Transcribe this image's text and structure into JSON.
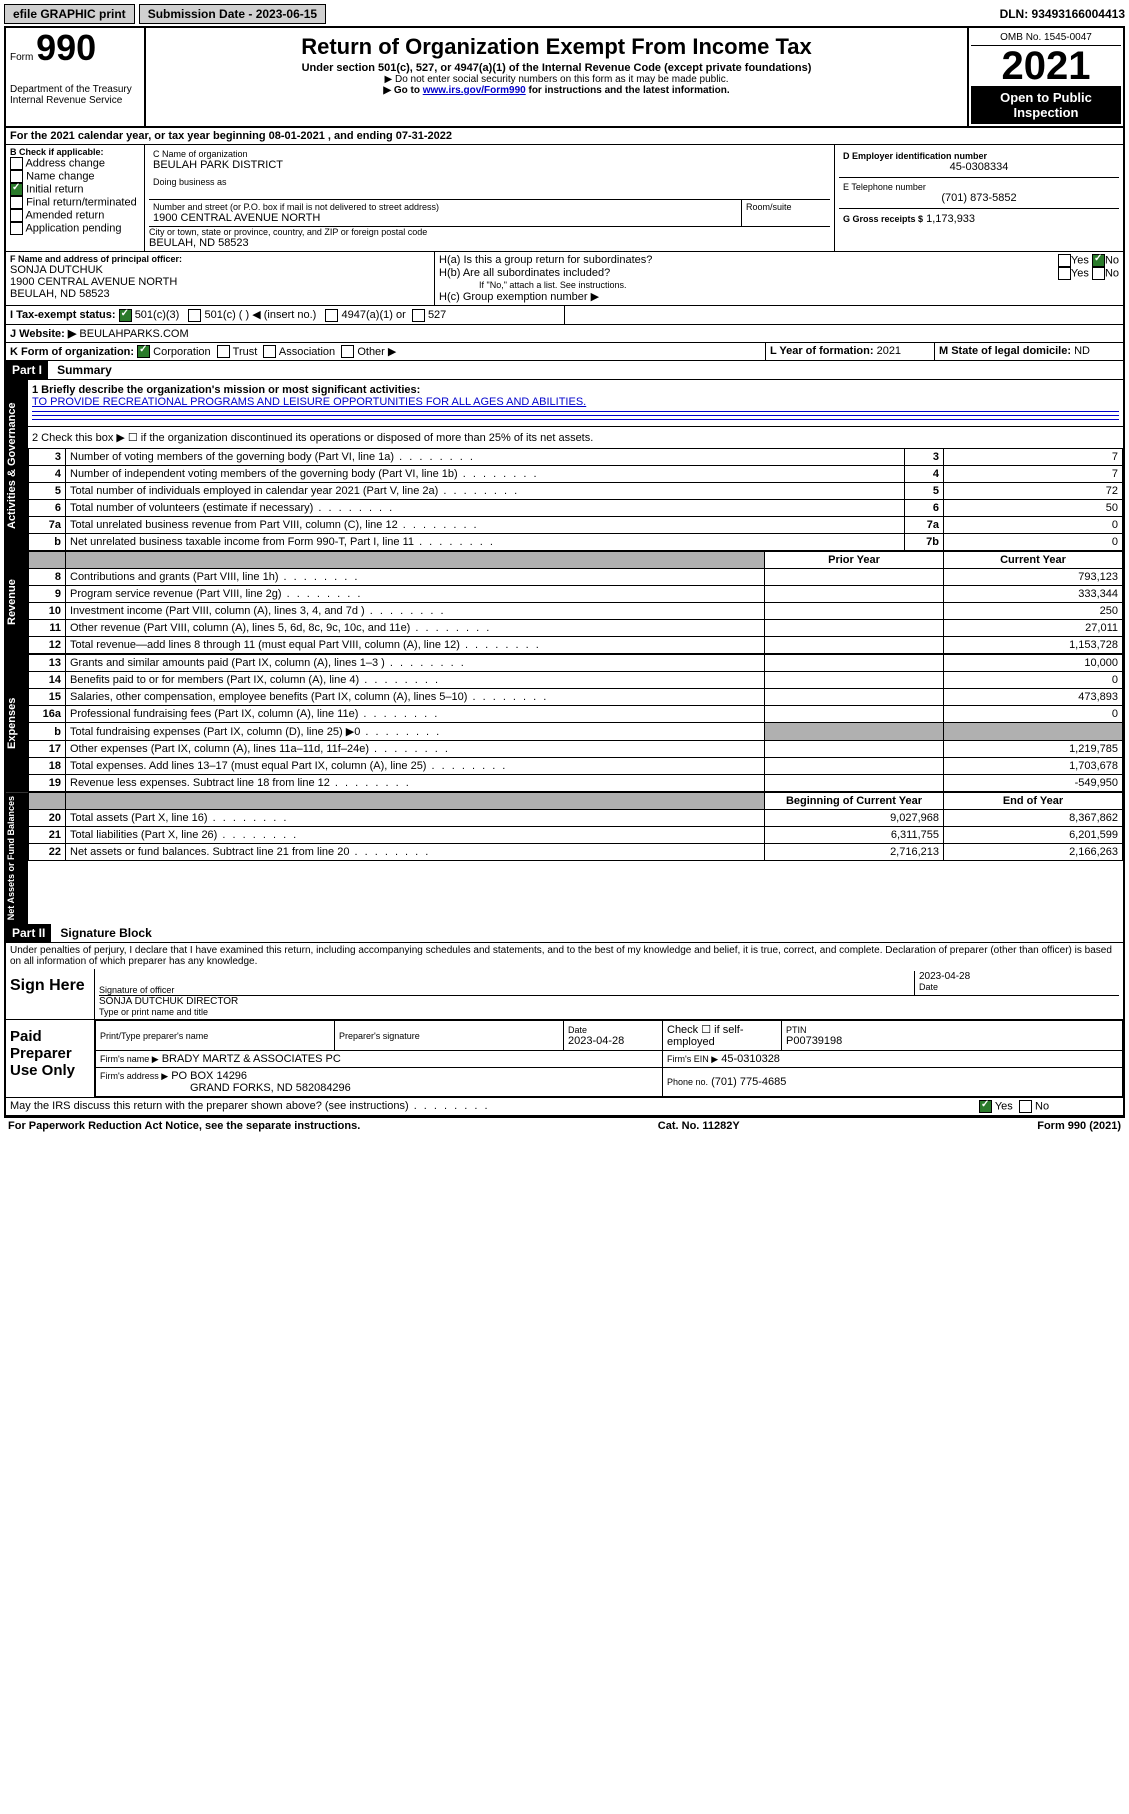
{
  "topbar": {
    "efile": "efile GRAPHIC print",
    "submission_label": "Submission Date - 2023-06-15",
    "dln": "DLN: 93493166004413"
  },
  "header": {
    "form_prefix": "Form",
    "form_number": "990",
    "dept": "Department of the Treasury",
    "irs": "Internal Revenue Service",
    "title": "Return of Organization Exempt From Income Tax",
    "sub": "Under section 501(c), 527, or 4947(a)(1) of the Internal Revenue Code (except private foundations)",
    "note1": "▶ Do not enter social security numbers on this form as it may be made public.",
    "note2_pre": "▶ Go to ",
    "note2_link": "www.irs.gov/Form990",
    "note2_post": " for instructions and the latest information.",
    "omb": "OMB No. 1545-0047",
    "year": "2021",
    "open": "Open to Public Inspection"
  },
  "line_a": "For the 2021 calendar year, or tax year beginning 08-01-2021   , and ending 07-31-2022",
  "box_b": {
    "title": "B Check if applicable:",
    "items": [
      "Address change",
      "Name change",
      "Initial return",
      "Final return/terminated",
      "Amended return",
      "Application pending"
    ],
    "checked_index": 2
  },
  "box_c": {
    "label_name": "C Name of organization",
    "org_name": "BEULAH PARK DISTRICT",
    "dba_label": "Doing business as",
    "addr_label": "Number and street (or P.O. box if mail is not delivered to street address)",
    "room_label": "Room/suite",
    "addr": "1900 CENTRAL AVENUE NORTH",
    "city_label": "City or town, state or province, country, and ZIP or foreign postal code",
    "city": "BEULAH, ND  58523"
  },
  "box_d": {
    "label": "D Employer identification number",
    "ein": "45-0308334"
  },
  "box_e": {
    "label": "E Telephone number",
    "phone": "(701) 873-5852"
  },
  "box_g": {
    "label": "G Gross receipts $",
    "amount": "1,173,933"
  },
  "box_f": {
    "label": "F  Name and address of principal officer:",
    "name": "SONJA DUTCHUK",
    "addr": "1900 CENTRAL AVENUE NORTH",
    "city": "BEULAH, ND  58523"
  },
  "box_h": {
    "ha": "H(a)  Is this a group return for subordinates?",
    "hb": "H(b)  Are all subordinates included?",
    "hb_note": "If \"No,\" attach a list. See instructions.",
    "hc": "H(c)  Group exemption number ▶",
    "yes": "Yes",
    "no": "No"
  },
  "line_i": {
    "label": "I   Tax-exempt status:",
    "opt1": "501(c)(3)",
    "opt2": "501(c) (   ) ◀ (insert no.)",
    "opt3": "4947(a)(1) or",
    "opt4": "527"
  },
  "line_j": {
    "label": "J   Website: ▶",
    "value": "BEULAHPARKS.COM"
  },
  "line_k": {
    "label": "K Form of organization:",
    "opts": [
      "Corporation",
      "Trust",
      "Association",
      "Other ▶"
    ]
  },
  "line_l": {
    "label": "L Year of formation:",
    "value": "2021"
  },
  "line_m": {
    "label": "M State of legal domicile:",
    "value": "ND"
  },
  "part1": {
    "header": "Part I",
    "title": "Summary",
    "q1_label": "1  Briefly describe the organization's mission or most significant activities:",
    "q1_value": "TO PROVIDE RECREATIONAL PROGRAMS AND LEISURE OPPORTUNITIES FOR ALL AGES AND ABILITIES.",
    "q2": "2   Check this box ▶ ☐  if the organization discontinued its operations or disposed of more than 25% of its net assets.",
    "rows_gov": [
      {
        "n": "3",
        "text": "Number of voting members of the governing body (Part VI, line 1a)",
        "box": "3",
        "val": "7"
      },
      {
        "n": "4",
        "text": "Number of independent voting members of the governing body (Part VI, line 1b)",
        "box": "4",
        "val": "7"
      },
      {
        "n": "5",
        "text": "Total number of individuals employed in calendar year 2021 (Part V, line 2a)",
        "box": "5",
        "val": "72"
      },
      {
        "n": "6",
        "text": "Total number of volunteers (estimate if necessary)",
        "box": "6",
        "val": "50"
      },
      {
        "n": "7a",
        "text": "Total unrelated business revenue from Part VIII, column (C), line 12",
        "box": "7a",
        "val": "0"
      },
      {
        "n": "b",
        "text": "Net unrelated business taxable income from Form 990-T, Part I, line 11",
        "box": "7b",
        "val": "0"
      }
    ],
    "col_prior": "Prior Year",
    "col_current": "Current Year",
    "rows_rev": [
      {
        "n": "8",
        "text": "Contributions and grants (Part VIII, line 1h)",
        "prior": "",
        "cur": "793,123"
      },
      {
        "n": "9",
        "text": "Program service revenue (Part VIII, line 2g)",
        "prior": "",
        "cur": "333,344"
      },
      {
        "n": "10",
        "text": "Investment income (Part VIII, column (A), lines 3, 4, and 7d )",
        "prior": "",
        "cur": "250"
      },
      {
        "n": "11",
        "text": "Other revenue (Part VIII, column (A), lines 5, 6d, 8c, 9c, 10c, and 11e)",
        "prior": "",
        "cur": "27,011"
      },
      {
        "n": "12",
        "text": "Total revenue—add lines 8 through 11 (must equal Part VIII, column (A), line 12)",
        "prior": "",
        "cur": "1,153,728"
      }
    ],
    "rows_exp": [
      {
        "n": "13",
        "text": "Grants and similar amounts paid (Part IX, column (A), lines 1–3 )",
        "prior": "",
        "cur": "10,000"
      },
      {
        "n": "14",
        "text": "Benefits paid to or for members (Part IX, column (A), line 4)",
        "prior": "",
        "cur": "0"
      },
      {
        "n": "15",
        "text": "Salaries, other compensation, employee benefits (Part IX, column (A), lines 5–10)",
        "prior": "",
        "cur": "473,893"
      },
      {
        "n": "16a",
        "text": "Professional fundraising fees (Part IX, column (A), line 11e)",
        "prior": "",
        "cur": "0"
      },
      {
        "n": "b",
        "text": "Total fundraising expenses (Part IX, column (D), line 25) ▶0",
        "prior": "shade",
        "cur": "shade"
      },
      {
        "n": "17",
        "text": "Other expenses (Part IX, column (A), lines 11a–11d, 11f–24e)",
        "prior": "",
        "cur": "1,219,785"
      },
      {
        "n": "18",
        "text": "Total expenses. Add lines 13–17 (must equal Part IX, column (A), line 25)",
        "prior": "",
        "cur": "1,703,678"
      },
      {
        "n": "19",
        "text": "Revenue less expenses. Subtract line 18 from line 12",
        "prior": "",
        "cur": "-549,950"
      }
    ],
    "col_begin": "Beginning of Current Year",
    "col_end": "End of Year",
    "rows_net": [
      {
        "n": "20",
        "text": "Total assets (Part X, line 16)",
        "prior": "9,027,968",
        "cur": "8,367,862"
      },
      {
        "n": "21",
        "text": "Total liabilities (Part X, line 26)",
        "prior": "6,311,755",
        "cur": "6,201,599"
      },
      {
        "n": "22",
        "text": "Net assets or fund balances. Subtract line 21 from line 20",
        "prior": "2,716,213",
        "cur": "2,166,263"
      }
    ]
  },
  "part2": {
    "header": "Part II",
    "title": "Signature Block",
    "declaration": "Under penalties of perjury, I declare that I have examined this return, including accompanying schedules and statements, and to the best of my knowledge and belief, it is true, correct, and complete. Declaration of preparer (other than officer) is based on all information of which preparer has any knowledge.",
    "sign_here": "Sign Here",
    "sig_officer": "Signature of officer",
    "sig_date": "2023-04-28",
    "date_label": "Date",
    "officer_name": "SONJA DUTCHUK  DIRECTOR",
    "type_name": "Type or print name and title",
    "paid": "Paid Preparer Use Only",
    "prep_name_label": "Print/Type preparer's name",
    "prep_sig_label": "Preparer's signature",
    "prep_date_label": "Date",
    "prep_date": "2023-04-28",
    "check_if": "Check ☐ if self-employed",
    "ptin_label": "PTIN",
    "ptin": "P00739198",
    "firm_name_label": "Firm's name    ▶",
    "firm_name": "BRADY MARTZ & ASSOCIATES PC",
    "firm_ein_label": "Firm's EIN ▶",
    "firm_ein": "45-0310328",
    "firm_addr_label": "Firm's address ▶",
    "firm_addr1": "PO BOX 14296",
    "firm_addr2": "GRAND FORKS, ND  582084296",
    "firm_phone_label": "Phone no.",
    "firm_phone": "(701) 775-4685",
    "may_irs": "May the IRS discuss this return with the preparer shown above? (see instructions)"
  },
  "footer": {
    "left": "For Paperwork Reduction Act Notice, see the separate instructions.",
    "center": "Cat. No. 11282Y",
    "right": "Form 990 (2021)"
  },
  "vtabs": {
    "gov": "Activities & Governance",
    "rev": "Revenue",
    "exp": "Expenses",
    "net": "Net Assets or Fund Balances"
  }
}
